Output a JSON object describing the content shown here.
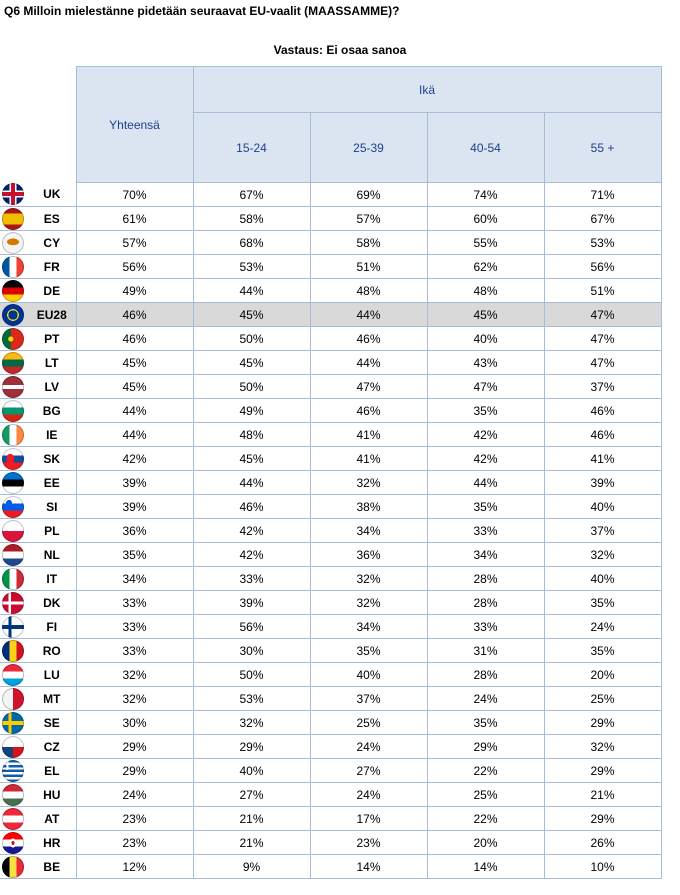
{
  "title": "Q6 Milloin mielestänne pidetään seuraavat EU-vaalit (MAASSAMME)?",
  "subtitle": "Vastaus: Ei osaa sanoa",
  "headers": {
    "total": "Yhteensä",
    "age_group": "Ikä",
    "ages": [
      "15-24",
      "25-39",
      "40-54",
      "55 +"
    ]
  },
  "rows": [
    {
      "code": "UK",
      "flag": "uk-flag-icon",
      "values": [
        "70%",
        "67%",
        "69%",
        "74%",
        "71%"
      ]
    },
    {
      "code": "ES",
      "flag": "es-flag-icon",
      "values": [
        "61%",
        "58%",
        "57%",
        "60%",
        "67%"
      ]
    },
    {
      "code": "CY",
      "flag": "cy-flag-icon",
      "values": [
        "57%",
        "68%",
        "58%",
        "55%",
        "53%"
      ]
    },
    {
      "code": "FR",
      "flag": "fr-flag-icon",
      "values": [
        "56%",
        "53%",
        "51%",
        "62%",
        "56%"
      ]
    },
    {
      "code": "DE",
      "flag": "de-flag-icon",
      "values": [
        "49%",
        "44%",
        "48%",
        "48%",
        "51%"
      ]
    },
    {
      "code": "EU28",
      "flag": "eu-flag-icon",
      "highlight": true,
      "values": [
        "46%",
        "45%",
        "44%",
        "45%",
        "47%"
      ]
    },
    {
      "code": "PT",
      "flag": "pt-flag-icon",
      "values": [
        "46%",
        "50%",
        "46%",
        "40%",
        "47%"
      ]
    },
    {
      "code": "LT",
      "flag": "lt-flag-icon",
      "values": [
        "45%",
        "45%",
        "44%",
        "43%",
        "47%"
      ]
    },
    {
      "code": "LV",
      "flag": "lv-flag-icon",
      "values": [
        "45%",
        "50%",
        "47%",
        "47%",
        "37%"
      ]
    },
    {
      "code": "BG",
      "flag": "bg-flag-icon",
      "values": [
        "44%",
        "49%",
        "46%",
        "35%",
        "46%"
      ]
    },
    {
      "code": "IE",
      "flag": "ie-flag-icon",
      "values": [
        "44%",
        "48%",
        "41%",
        "42%",
        "46%"
      ]
    },
    {
      "code": "SK",
      "flag": "sk-flag-icon",
      "values": [
        "42%",
        "45%",
        "41%",
        "42%",
        "41%"
      ]
    },
    {
      "code": "EE",
      "flag": "ee-flag-icon",
      "values": [
        "39%",
        "44%",
        "32%",
        "44%",
        "39%"
      ]
    },
    {
      "code": "SI",
      "flag": "si-flag-icon",
      "values": [
        "39%",
        "46%",
        "38%",
        "35%",
        "40%"
      ]
    },
    {
      "code": "PL",
      "flag": "pl-flag-icon",
      "values": [
        "36%",
        "42%",
        "34%",
        "33%",
        "37%"
      ]
    },
    {
      "code": "NL",
      "flag": "nl-flag-icon",
      "values": [
        "35%",
        "42%",
        "36%",
        "34%",
        "32%"
      ]
    },
    {
      "code": "IT",
      "flag": "it-flag-icon",
      "values": [
        "34%",
        "33%",
        "32%",
        "28%",
        "40%"
      ]
    },
    {
      "code": "DK",
      "flag": "dk-flag-icon",
      "values": [
        "33%",
        "39%",
        "32%",
        "28%",
        "35%"
      ]
    },
    {
      "code": "FI",
      "flag": "fi-flag-icon",
      "values": [
        "33%",
        "56%",
        "34%",
        "33%",
        "24%"
      ]
    },
    {
      "code": "RO",
      "flag": "ro-flag-icon",
      "values": [
        "33%",
        "30%",
        "35%",
        "31%",
        "35%"
      ]
    },
    {
      "code": "LU",
      "flag": "lu-flag-icon",
      "values": [
        "32%",
        "50%",
        "40%",
        "28%",
        "20%"
      ]
    },
    {
      "code": "MT",
      "flag": "mt-flag-icon",
      "values": [
        "32%",
        "53%",
        "37%",
        "24%",
        "25%"
      ]
    },
    {
      "code": "SE",
      "flag": "se-flag-icon",
      "values": [
        "30%",
        "32%",
        "25%",
        "35%",
        "29%"
      ]
    },
    {
      "code": "CZ",
      "flag": "cz-flag-icon",
      "values": [
        "29%",
        "29%",
        "24%",
        "29%",
        "32%"
      ]
    },
    {
      "code": "EL",
      "flag": "el-flag-icon",
      "values": [
        "29%",
        "40%",
        "27%",
        "22%",
        "29%"
      ]
    },
    {
      "code": "HU",
      "flag": "hu-flag-icon",
      "values": [
        "24%",
        "27%",
        "24%",
        "25%",
        "21%"
      ]
    },
    {
      "code": "AT",
      "flag": "at-flag-icon",
      "values": [
        "23%",
        "21%",
        "17%",
        "22%",
        "29%"
      ]
    },
    {
      "code": "HR",
      "flag": "hr-flag-icon",
      "values": [
        "23%",
        "21%",
        "23%",
        "20%",
        "26%"
      ]
    },
    {
      "code": "BE",
      "flag": "be-flag-icon",
      "values": [
        "12%",
        "9%",
        "14%",
        "14%",
        "10%"
      ]
    }
  ]
}
